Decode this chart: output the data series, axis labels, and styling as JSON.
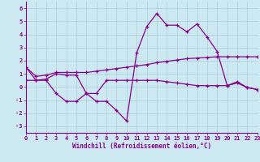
{
  "xlabel": "Windchill (Refroidissement éolien,°C)",
  "background_color": "#cce8f0",
  "grid_color": "#aaccd8",
  "line_color": "#880088",
  "spine_color": "#880088",
  "hours": [
    0,
    1,
    2,
    3,
    4,
    5,
    6,
    7,
    8,
    9,
    10,
    11,
    12,
    13,
    14,
    15,
    16,
    17,
    18,
    19,
    20,
    21,
    22,
    23
  ],
  "windchill": [
    1.5,
    0.5,
    0.6,
    1.0,
    0.9,
    0.9,
    -0.5,
    -1.1,
    -1.1,
    -1.8,
    -2.6,
    2.6,
    4.6,
    5.6,
    4.7,
    4.7,
    4.2,
    4.8,
    3.8,
    2.7,
    0.1,
    0.4,
    -0.05,
    -0.2
  ],
  "temp_linear": [
    1.5,
    0.8,
    0.9,
    1.1,
    1.1,
    1.1,
    1.1,
    1.2,
    1.3,
    1.4,
    1.5,
    1.6,
    1.7,
    1.85,
    1.95,
    2.05,
    2.15,
    2.2,
    2.25,
    2.3,
    2.3,
    2.3,
    2.3,
    2.3
  ],
  "flat_line": [
    0.5,
    0.5,
    0.5,
    -0.5,
    -1.1,
    -1.1,
    -0.5,
    -0.5,
    0.5,
    0.5,
    0.5,
    0.5,
    0.5,
    0.5,
    0.4,
    0.3,
    0.2,
    0.1,
    0.1,
    0.1,
    0.1,
    0.3,
    -0.05,
    -0.2
  ],
  "ylim": [
    -3.5,
    6.5
  ],
  "yticks": [
    -3,
    -2,
    -1,
    0,
    1,
    2,
    3,
    4,
    5,
    6
  ],
  "xticks": [
    0,
    1,
    2,
    3,
    4,
    5,
    6,
    7,
    8,
    9,
    10,
    11,
    12,
    13,
    14,
    15,
    16,
    17,
    18,
    19,
    20,
    21,
    22,
    23
  ],
  "tick_fontsize": 5.0,
  "label_fontsize": 5.5
}
